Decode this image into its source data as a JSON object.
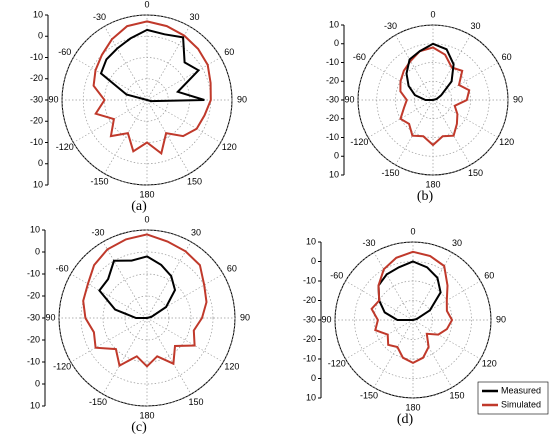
{
  "chart_data": [
    {
      "type": "polar",
      "label": "(a)",
      "x": [
        0,
        15,
        30,
        45,
        60,
        75,
        90,
        105,
        120,
        135,
        150,
        165,
        180,
        195,
        210,
        225,
        240,
        255,
        270,
        285,
        300,
        315,
        330,
        345
      ],
      "xticks": [
        0,
        30,
        60,
        90,
        120,
        150,
        180,
        -150,
        -120,
        -90,
        -60,
        -30
      ],
      "ylim": [
        -30,
        10
      ],
      "yticks": [
        10,
        0,
        -10,
        -20,
        -30
      ],
      "grid": true,
      "series": [
        {
          "color": "#c0392b",
          "values": [
            7,
            6,
            5,
            4,
            3,
            1,
            0,
            -2,
            -3,
            -6,
            -12,
            -4,
            -10,
            -5,
            -12,
            -6,
            -12,
            -5,
            -10,
            -4,
            -2,
            0,
            3,
            6
          ]
        },
        {
          "color": "#000000",
          "values": [
            3,
            2,
            4,
            -5,
            -2,
            -15,
            -3,
            -28,
            -30,
            -30,
            -30,
            -30,
            -30,
            -30,
            -30,
            -30,
            -30,
            -30,
            -30,
            -20,
            -5,
            -3,
            -2,
            0
          ]
        }
      ]
    },
    {
      "type": "polar",
      "label": "(b)",
      "x": [
        0,
        15,
        30,
        45,
        60,
        75,
        90,
        105,
        120,
        135,
        150,
        165,
        180,
        195,
        210,
        225,
        240,
        255,
        270,
        285,
        300,
        315,
        330,
        345
      ],
      "xticks": [
        0,
        30,
        60,
        90,
        120,
        150,
        180,
        -150,
        -120,
        -90,
        -60,
        -30
      ],
      "ylim": [
        -30,
        10
      ],
      "yticks": [
        10,
        0,
        -10,
        -20,
        -30
      ],
      "grid": true,
      "series": [
        {
          "color": "#c0392b",
          "values": [
            -2,
            -5,
            -10,
            -8,
            -14,
            -10,
            -12,
            -18,
            -15,
            -12,
            -8,
            -10,
            -6,
            -10,
            -8,
            -12,
            -10,
            -14,
            -16,
            -12,
            -10,
            -8,
            -6,
            -3
          ]
        },
        {
          "color": "#000000",
          "values": [
            0,
            -2,
            -8,
            -16,
            -25,
            -28,
            -30,
            -30,
            -30,
            -30,
            -30,
            -30,
            -30,
            -30,
            -30,
            -30,
            -30,
            -30,
            -26,
            -20,
            -15,
            -10,
            -5,
            -3
          ]
        }
      ]
    },
    {
      "type": "polar",
      "label": "(c)",
      "x": [
        0,
        15,
        30,
        45,
        60,
        75,
        90,
        105,
        120,
        135,
        150,
        165,
        180,
        195,
        210,
        225,
        240,
        255,
        270,
        285,
        300,
        315,
        330,
        345
      ],
      "xticks": [
        0,
        30,
        60,
        90,
        120,
        150,
        180,
        -150,
        -120,
        -90,
        -60,
        -30
      ],
      "ylim": [
        -30,
        10
      ],
      "yticks": [
        10,
        0,
        -10,
        -20,
        -30
      ],
      "grid": true,
      "series": [
        {
          "color": "#c0392b",
          "values": [
            8,
            6,
            5,
            4,
            0,
            -2,
            -5,
            -8,
            -5,
            -12,
            -6,
            -12,
            -8,
            -12,
            -5,
            -10,
            -3,
            -5,
            -2,
            0,
            1,
            4,
            6,
            7
          ]
        },
        {
          "color": "#000000",
          "values": [
            -2,
            -5,
            -8,
            -12,
            -20,
            -28,
            -30,
            -30,
            -30,
            -30,
            -30,
            -30,
            -30,
            -30,
            -30,
            -30,
            -30,
            -30,
            -25,
            -15,
            -5,
            -5,
            0,
            -3
          ]
        }
      ]
    },
    {
      "type": "polar",
      "label": "(d)",
      "x": [
        0,
        15,
        30,
        45,
        60,
        75,
        90,
        105,
        120,
        135,
        150,
        165,
        180,
        195,
        210,
        225,
        240,
        255,
        270,
        285,
        300,
        315,
        330,
        345
      ],
      "xticks": [
        0,
        30,
        60,
        90,
        120,
        150,
        180,
        -150,
        -120,
        -90,
        -60,
        -30
      ],
      "ylim": [
        -30,
        10
      ],
      "yticks": [
        10,
        0,
        -10,
        -20,
        -30
      ],
      "grid": true,
      "legend": "lower right",
      "series": [
        {
          "name": "Measured",
          "color": "#000000",
          "values": [
            0,
            -2,
            -5,
            -10,
            -20,
            -28,
            -30,
            -30,
            -30,
            -30,
            -30,
            -30,
            -30,
            -30,
            -30,
            -30,
            -30,
            -30,
            -22,
            -15,
            -10,
            -5,
            -3,
            -2
          ]
        },
        {
          "name": "Simulated",
          "color": "#c0392b",
          "values": [
            5,
            4,
            2,
            -5,
            -10,
            -12,
            -10,
            -12,
            -15,
            -20,
            -14,
            -10,
            -8,
            -10,
            -14,
            -12,
            -15,
            -10,
            -12,
            -8,
            -10,
            -5,
            0,
            3
          ]
        }
      ]
    }
  ]
}
